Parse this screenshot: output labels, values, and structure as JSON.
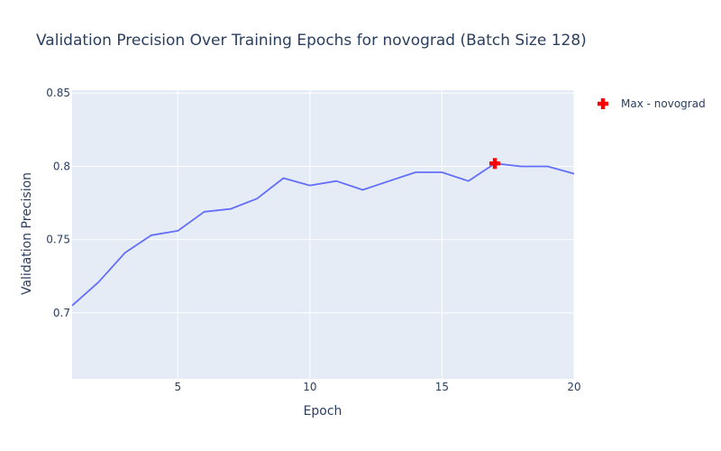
{
  "chart_data": {
    "type": "line",
    "title": "Validation Precision Over Training Epochs for novograd (Batch Size 128)",
    "xlabel": "Epoch",
    "ylabel": "Validation Precision",
    "xlim": [
      1,
      20
    ],
    "ylim": [
      0.655,
      0.852
    ],
    "x_ticks": [
      5,
      10,
      15,
      20
    ],
    "y_ticks": [
      0.7,
      0.75,
      0.8,
      0.85
    ],
    "x_tick_labels": [
      "5",
      "10",
      "15",
      "20"
    ],
    "y_tick_labels": [
      "0.7",
      "0.75",
      "0.8",
      "0.85"
    ],
    "grid": true,
    "legend_position": "top-right",
    "series": [
      {
        "color": "#636efa",
        "x": [
          1,
          2,
          3,
          4,
          5,
          6,
          7,
          8,
          9,
          10,
          11,
          12,
          13,
          14,
          15,
          16,
          17,
          18,
          19,
          20
        ],
        "y": [
          0.705,
          0.721,
          0.741,
          0.753,
          0.756,
          0.769,
          0.771,
          0.778,
          0.792,
          0.787,
          0.79,
          0.784,
          0.79,
          0.796,
          0.796,
          0.79,
          0.802,
          0.8,
          0.8,
          0.795
        ]
      },
      {
        "name": "Max - novograd",
        "type": "marker",
        "marker": "cross",
        "color": "#ff0000",
        "x": [
          17
        ],
        "y": [
          0.802
        ]
      }
    ]
  }
}
